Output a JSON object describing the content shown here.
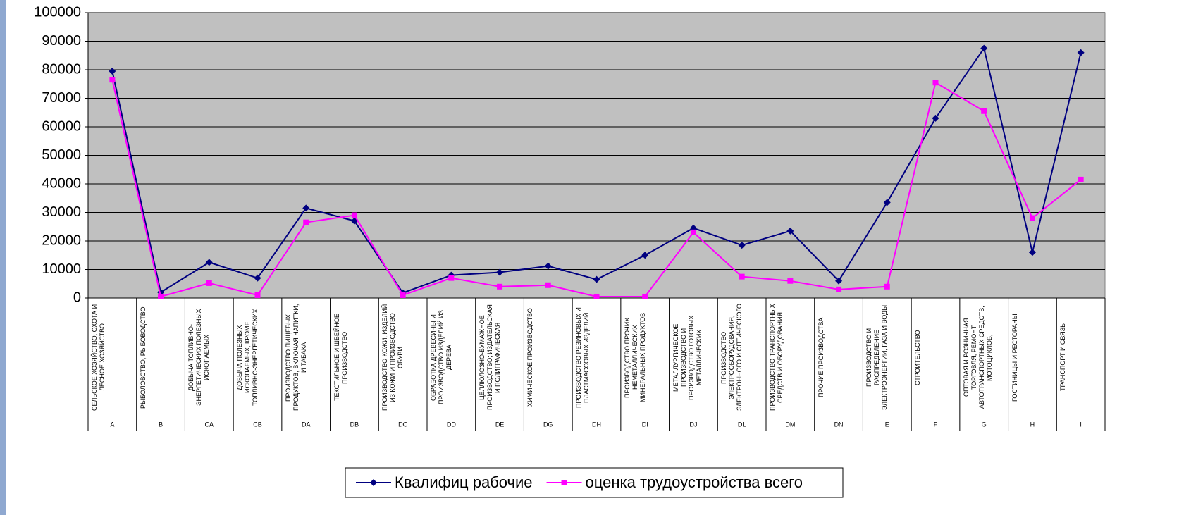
{
  "chart_data": {
    "type": "line",
    "categories": [
      "A",
      "B",
      "CA",
      "CB",
      "DA",
      "DB",
      "DC",
      "DD",
      "DE",
      "DG",
      "DH",
      "DI",
      "DJ",
      "DL",
      "DM",
      "DN",
      "E",
      "F",
      "G",
      "H",
      "I"
    ],
    "category_names": [
      "СЕЛЬСКОЕ ХОЗЯЙСТВО, ОХОТА И ЛЕСНОЕ ХОЗЯЙСТВО",
      "РЫБОЛОВСТВО, РЫБОВОДСТВО",
      "ДОБЫЧА ТОПЛИВНО-ЭНЕРГЕТИЧЕСКИХ ПОЛЕЗНЫХ ИСКОПАЕМЫХ",
      "ДОБЫЧА ПОЛЕЗНЫХ ИСКОПАЕМЫХ, КРОМЕ ТОПЛИВНО-ЭНЕРГЕТИЧЕСКИХ",
      "ПРОИЗВОДСТВО ПИЩЕВЫХ ПРОДУКТОВ, ВКЛЮЧАЯ НАПИТКИ, И ТАБАКА",
      "ТЕКСТИЛЬНОЕ И ШВЕЙНОЕ ПРОИЗВОДСТВО",
      "ПРОИЗВОДСТВО КОЖИ, ИЗДЕЛИЙ ИЗ КОЖИ И ПРОИЗВОДСТВО ОБУВИ",
      "ОБРАБОТКА ДРЕВЕСИНЫ И ПРОИЗВОДСТВО ИЗДЕЛИЙ ИЗ ДЕРЕВА",
      "ЦЕЛЛЮЛОЗНО-БУМАЖНОЕ ПРОИЗВОДСТВО; ИЗДАТЕЛЬСКАЯ И ПОЛИГРАФИЧЕСКАЯ",
      "ХИМИЧЕСКОЕ ПРОИЗВОДСТВО",
      "ПРОИЗВОДСТВО РЕЗИНОВЫХ И ПЛАСТМАССОВЫХ ИЗДЕЛИЙ",
      "ПРОИЗВОДСТВО ПРОЧИХ НЕМЕТАЛЛИЧЕСКИХ МИНЕРАЛЬНЫХ ПРОДУКТОВ",
      "МЕТАЛЛУРГИЧЕСКОЕ ПРОИЗВОДСТВО И ПРОИЗВОДСТВО ГОТОВЫХ МЕТАЛЛИЧЕСКИХ",
      "ПРОИЗВОДСТВО ЭЛЕКТРООБОРУДОВАНИЯ, ЭЛЕКТРОННОГО И ОПТИЧЕСКОГО",
      "ПРОИЗВОДСТВО ТРАНСПОРТНЫХ СРЕДСТВ И ОБОРУДОВАНИЯ",
      "ПРОЧИЕ ПРОИЗВОДСТВА",
      "ПРОИЗВОДСТВО И РАСПРЕДЕЛЕНИЕ ЭЛЕКТРОЭНЕРГИИ, ГАЗА И ВОДЫ",
      "СТРОИТЕЛЬСТВО",
      "ОПТОВАЯ И РОЗНИЧНАЯ ТОРГОВЛЯ; РЕМОНТ АВТОТРАНСПОРТНЫХ СРЕДСТВ, МОТОЦИКЛОВ,",
      "ГОСТИНИЦЫ И РЕСТОРАНЫ",
      "ТРАНСПОРТ И СВЯЗЬ"
    ],
    "series": [
      {
        "name": "Квалифиц рабочие",
        "color": "#000080",
        "marker": "diamond",
        "values": [
          79500,
          2000,
          12500,
          7000,
          31500,
          27000,
          1800,
          8000,
          9000,
          11200,
          6500,
          15000,
          24500,
          18500,
          23500,
          6000,
          33500,
          63000,
          87500,
          16000,
          86000
        ]
      },
      {
        "name": "оценка трудоустройства всего",
        "color": "#ff00ff",
        "marker": "square",
        "values": [
          76500,
          500,
          5200,
          1000,
          26500,
          29000,
          1000,
          7000,
          4000,
          4500,
          500,
          500,
          23000,
          7500,
          6000,
          3000,
          4000,
          75500,
          65500,
          28000,
          41500
        ]
      }
    ],
    "ylim": [
      0,
      100000
    ],
    "yticks": [
      0,
      10000,
      20000,
      30000,
      40000,
      50000,
      60000,
      70000,
      80000,
      90000,
      100000
    ],
    "grid": true,
    "legend": "bottom"
  }
}
